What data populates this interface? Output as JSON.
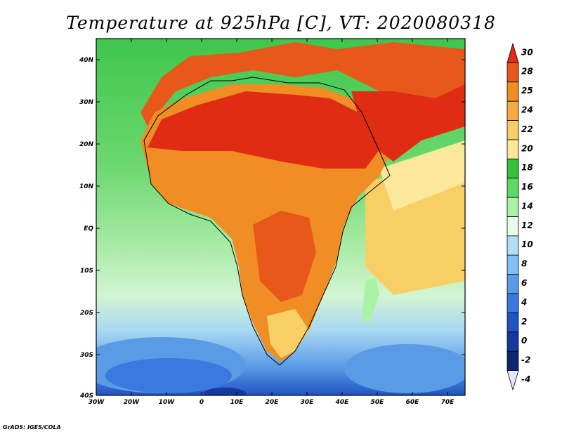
{
  "title": "Temperature at 925hPa [C], VT: 2020080318",
  "credit": "GrADS: IGES/COLA",
  "map": {
    "lon_ticks": [
      "30W",
      "20W",
      "10W",
      "0",
      "10E",
      "20E",
      "30E",
      "40E",
      "50E",
      "60E",
      "70E"
    ],
    "lat_ticks": [
      "40N",
      "30N",
      "20N",
      "10N",
      "EQ",
      "10S",
      "20S",
      "30S",
      "40S"
    ],
    "lon_range": [
      -30,
      75
    ],
    "lat_range": [
      -40,
      45
    ]
  },
  "colorbar": {
    "labels": [
      "30",
      "28",
      "25",
      "24",
      "22",
      "20",
      "18",
      "16",
      "14",
      "12",
      "10",
      "8",
      "6",
      "4",
      "2",
      "0",
      "-2",
      "-4"
    ],
    "colors": [
      "#e02c12",
      "#e8581a",
      "#f08d24",
      "#f4ad3e",
      "#f8cf65",
      "#fbe89a",
      "#34c13b",
      "#5fd866",
      "#aaf2a6",
      "#e6fbe9",
      "#b2ddf5",
      "#82bff2",
      "#5a9be6",
      "#3a79dd",
      "#2053c2",
      "#143aa2",
      "#0d2776",
      "#e6e6ff"
    ]
  }
}
